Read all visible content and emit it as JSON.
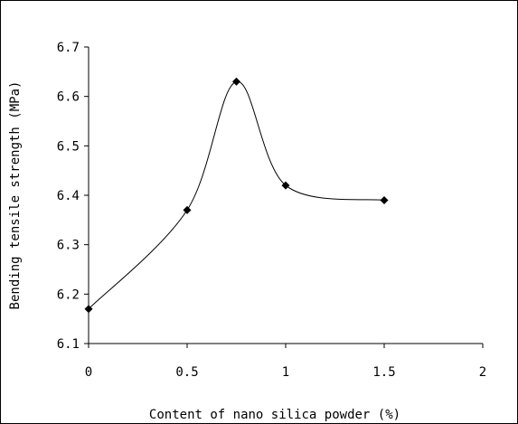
{
  "chart_data": {
    "type": "line",
    "title": "",
    "xlabel": "Content of nano silica powder (%)",
    "ylabel": "Bending tensile strength (MPa)",
    "x": [
      0,
      0.5,
      0.75,
      1,
      1.5
    ],
    "series": [
      {
        "values": [
          6.17,
          6.37,
          6.63,
          6.42,
          6.39
        ]
      }
    ],
    "xlim": [
      0,
      2
    ],
    "ylim": [
      6.1,
      6.7
    ],
    "xticks": [
      "0",
      "0.5",
      "1",
      "1.5",
      "2"
    ],
    "yticks": [
      "6.1",
      "6.2",
      "6.3",
      "6.4",
      "6.5",
      "6.6",
      "6.7"
    ],
    "smoothed": true,
    "marker": "diamond",
    "grid": false,
    "legend": "none",
    "line_color": "#000000"
  }
}
